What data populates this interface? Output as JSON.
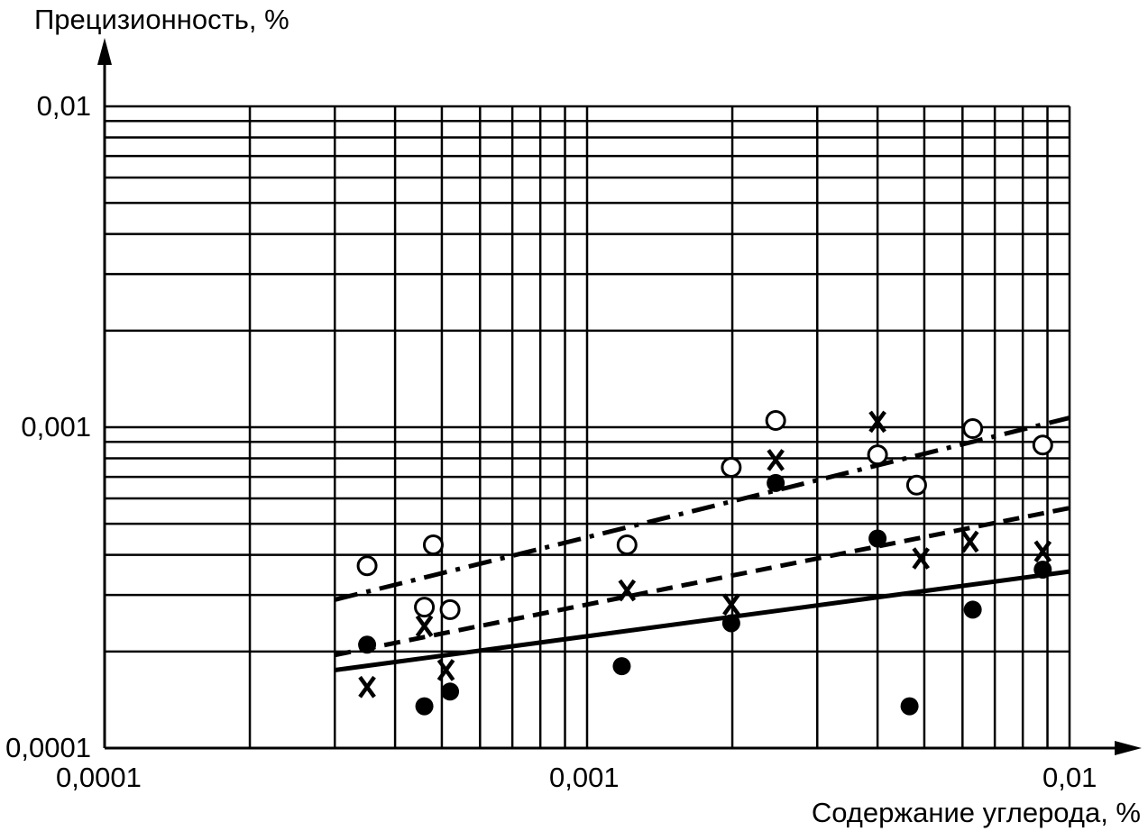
{
  "chart_data": {
    "type": "scatter",
    "title": "",
    "xlabel": "Содержание углерода, %",
    "ylabel": "Прецизионность, %",
    "xscale": "log",
    "yscale": "log",
    "xlim": [
      0.0001,
      0.01
    ],
    "ylim": [
      0.0001,
      0.01
    ],
    "grid": true,
    "x_tick_labels": [
      "0,0001",
      "0,001",
      "0,01"
    ],
    "y_tick_labels": [
      "0,0001",
      "0,001",
      "0,01"
    ],
    "series": [
      {
        "marker": "open-circle",
        "points": [
          {
            "x": 0.00035,
            "y": 0.00037
          },
          {
            "x": 0.00048,
            "y": 0.00043
          },
          {
            "x": 0.00046,
            "y": 0.000275
          },
          {
            "x": 0.00052,
            "y": 0.00027
          },
          {
            "x": 0.00121,
            "y": 0.00043
          },
          {
            "x": 0.00199,
            "y": 0.00075
          },
          {
            "x": 0.00246,
            "y": 0.00105
          },
          {
            "x": 0.004,
            "y": 0.00082
          },
          {
            "x": 0.00482,
            "y": 0.00066
          },
          {
            "x": 0.0063,
            "y": 0.00099
          },
          {
            "x": 0.0088,
            "y": 0.00088
          }
        ]
      },
      {
        "marker": "cross",
        "points": [
          {
            "x": 0.00035,
            "y": 0.000155
          },
          {
            "x": 0.00046,
            "y": 0.00024
          },
          {
            "x": 0.00051,
            "y": 0.000175
          },
          {
            "x": 0.00121,
            "y": 0.00031
          },
          {
            "x": 0.00199,
            "y": 0.00028
          },
          {
            "x": 0.00246,
            "y": 0.00079
          },
          {
            "x": 0.004,
            "y": 0.00104
          },
          {
            "x": 0.00492,
            "y": 0.00039
          },
          {
            "x": 0.00622,
            "y": 0.00044
          },
          {
            "x": 0.0088,
            "y": 0.00041
          }
        ]
      },
      {
        "marker": "filled-circle",
        "points": [
          {
            "x": 0.00035,
            "y": 0.00021
          },
          {
            "x": 0.00046,
            "y": 0.000135
          },
          {
            "x": 0.00052,
            "y": 0.00015
          },
          {
            "x": 0.00118,
            "y": 0.00018
          },
          {
            "x": 0.00199,
            "y": 0.000245
          },
          {
            "x": 0.00246,
            "y": 0.00067
          },
          {
            "x": 0.004,
            "y": 0.00045
          },
          {
            "x": 0.00466,
            "y": 0.000135
          },
          {
            "x": 0.0063,
            "y": 0.00027
          },
          {
            "x": 0.0088,
            "y": 0.00036
          }
        ]
      }
    ],
    "trend_lines": [
      {
        "style": "dash-dot",
        "from": {
          "x": 0.0003,
          "y": 0.00029
        },
        "to": {
          "x": 0.01,
          "y": 0.00107
        }
      },
      {
        "style": "dashed",
        "from": {
          "x": 0.0003,
          "y": 0.000195
        },
        "to": {
          "x": 0.01,
          "y": 0.00056
        }
      },
      {
        "style": "solid",
        "from": {
          "x": 0.0003,
          "y": 0.000175
        },
        "to": {
          "x": 0.01,
          "y": 0.000355
        }
      }
    ]
  }
}
